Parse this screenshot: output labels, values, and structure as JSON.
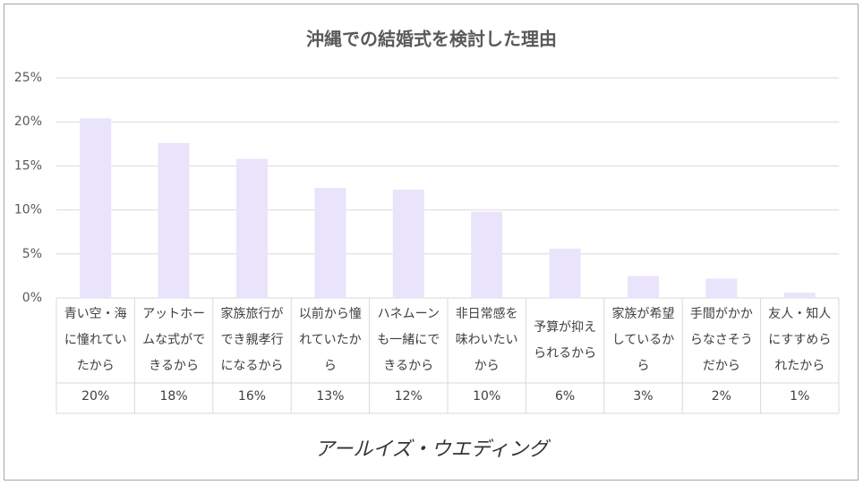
{
  "chart_data": {
    "type": "bar",
    "title": "沖縄での結婚式を検討した理由",
    "categories": [
      "青い空・海に憧れていたから",
      "アットホームな式ができるから",
      "家族旅行ができ親孝行になるから",
      "以前から憧れていたから",
      "ハネムーンも一緒にできるから",
      "非日常感を味わいたいから",
      "予算が抑えられるから",
      "家族が希望しているから",
      "手間がかからなさそうだから",
      "友人・知人にすすめられたから"
    ],
    "values": [
      20.4,
      17.6,
      15.8,
      12.5,
      12.3,
      9.8,
      5.6,
      2.5,
      2.2,
      0.6
    ],
    "value_labels": [
      "20%",
      "18%",
      "16%",
      "13%",
      "12%",
      "10%",
      "6%",
      "3%",
      "2%",
      "1%"
    ],
    "color": "#e9e4fb",
    "ylim": [
      0,
      25
    ],
    "yticks": [
      {
        "value": 0,
        "label": "0%"
      },
      {
        "value": 5,
        "label": "5%"
      },
      {
        "value": 10,
        "label": "10%"
      },
      {
        "value": 15,
        "label": "15%"
      },
      {
        "value": 20,
        "label": "20%"
      },
      {
        "value": 25,
        "label": "25%"
      }
    ],
    "grid": true
  },
  "brand": "アールイズ・ウエディング"
}
